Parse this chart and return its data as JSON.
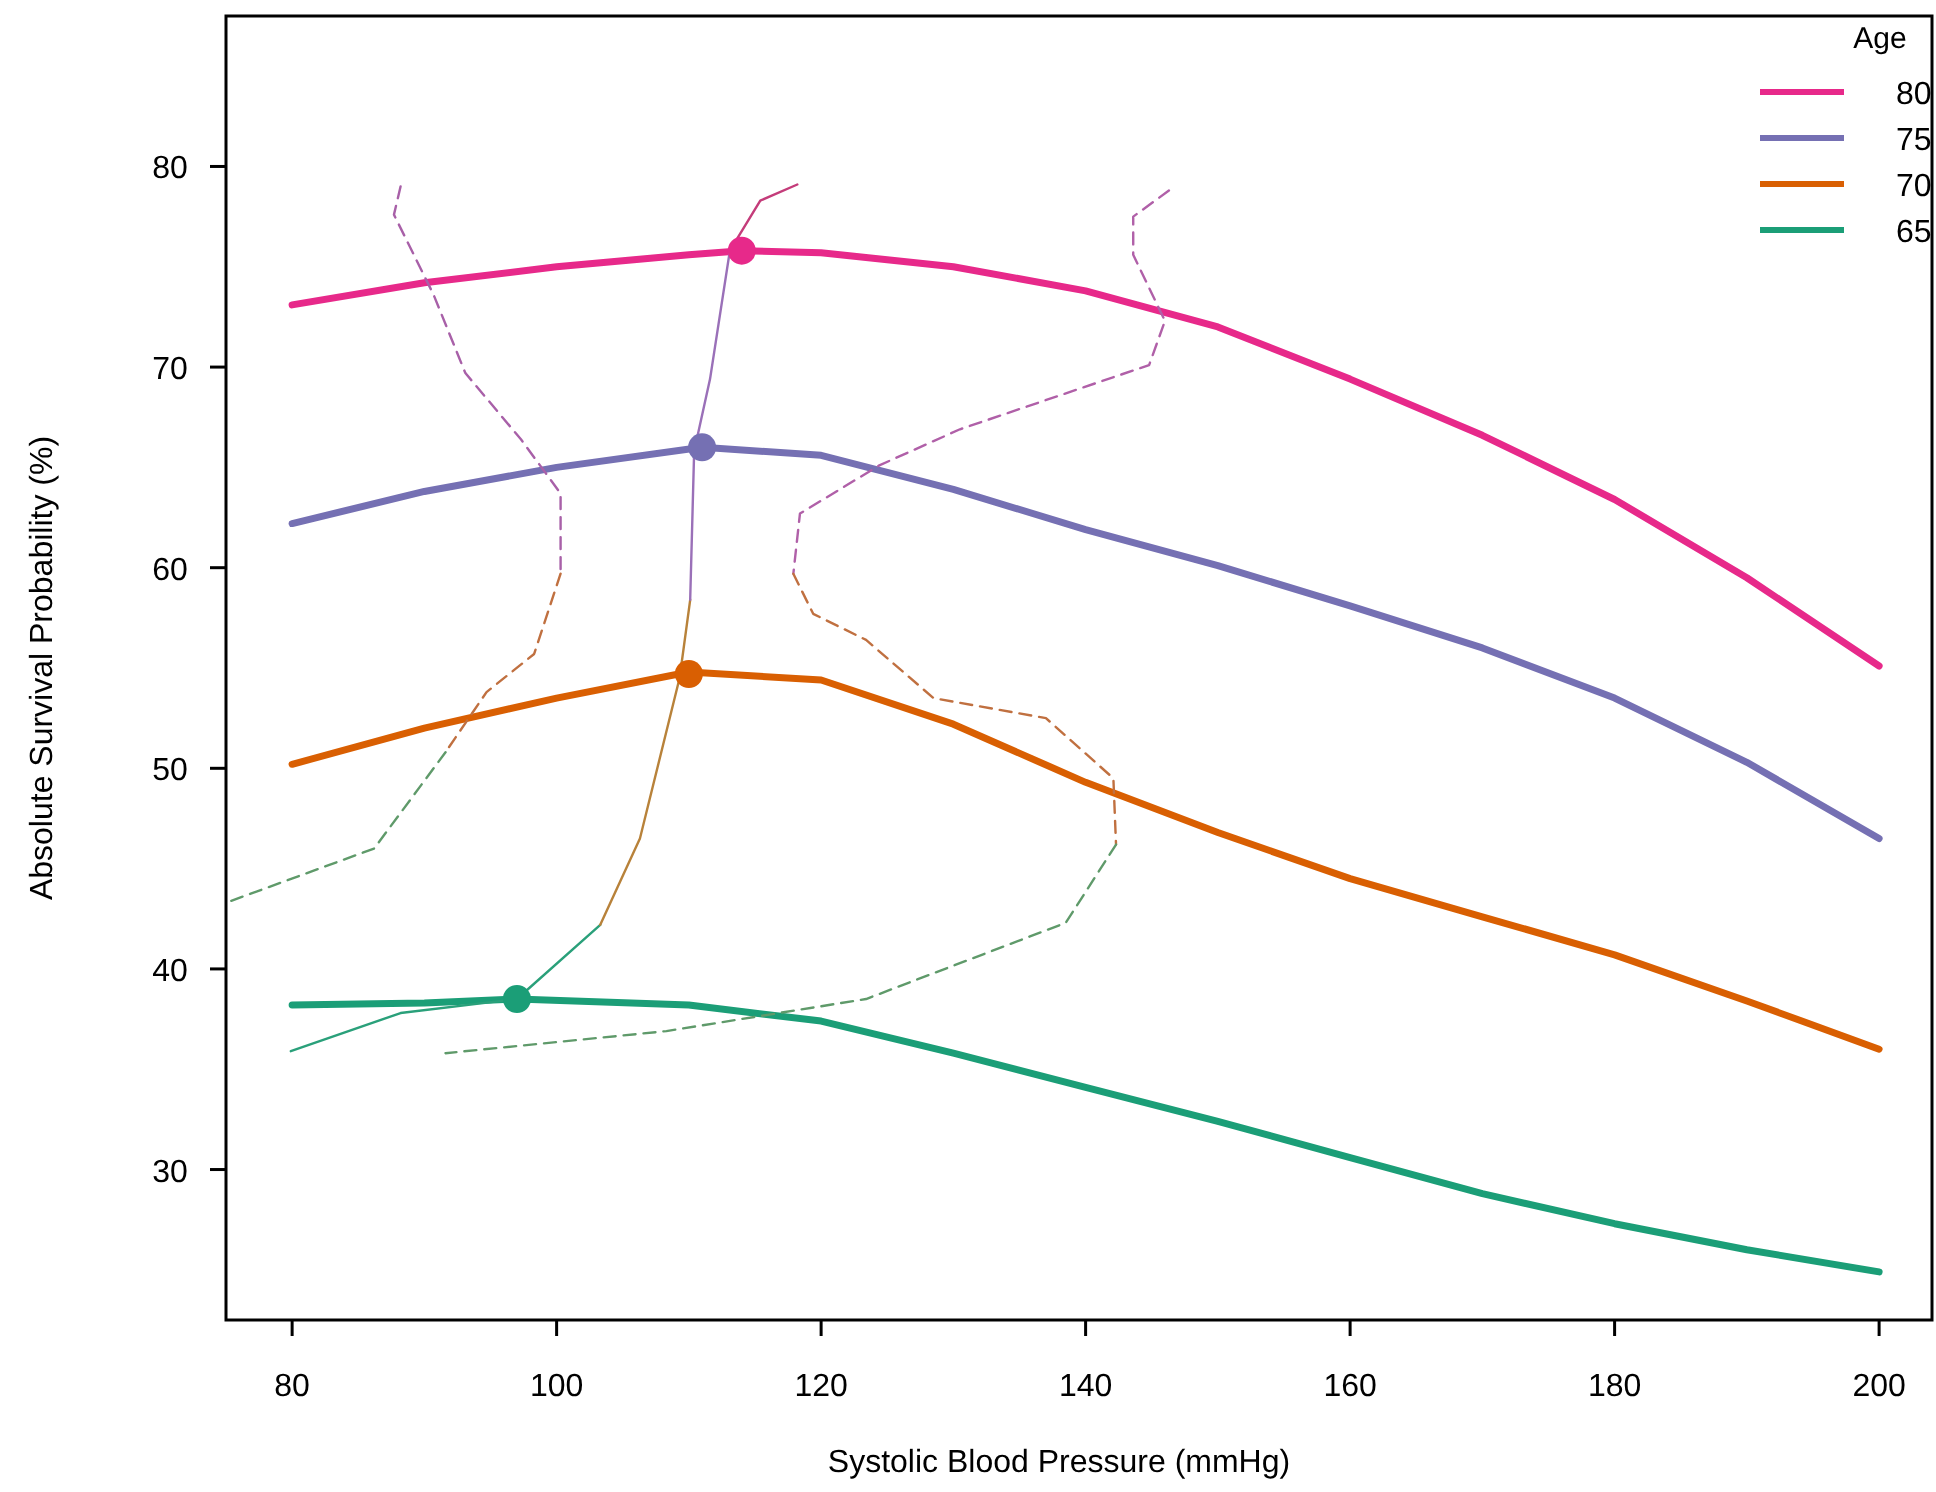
{
  "chart_data": {
    "type": "line",
    "xlabel": "Systolic Blood Pressure (mmHg)",
    "ylabel": "Absolute Survival Probability (%)",
    "legend_title": "Age",
    "legend": "top right",
    "grid": false,
    "xlim": [
      75,
      204
    ],
    "ylim": [
      22.5,
      87.5
    ],
    "xticks": [
      80,
      100,
      120,
      140,
      160,
      180,
      200
    ],
    "yticks": [
      30,
      40,
      50,
      60,
      70,
      80
    ],
    "series": [
      {
        "name": "80",
        "color": "#e7298a",
        "x": [
          80,
          90,
          100,
          110,
          114,
          120,
          130,
          140,
          150,
          160,
          170,
          180,
          190,
          200
        ],
        "values": [
          73.1,
          74.2,
          75.0,
          75.6,
          75.8,
          75.7,
          75.0,
          73.8,
          72.0,
          69.4,
          66.6,
          63.4,
          59.5,
          55.1
        ]
      },
      {
        "name": "75",
        "color": "#7570b3",
        "x": [
          80,
          90,
          100,
          111,
          120,
          130,
          140,
          150,
          160,
          170,
          180,
          190,
          200
        ],
        "values": [
          62.2,
          63.8,
          65.0,
          66.0,
          65.6,
          63.9,
          61.9,
          60.1,
          58.1,
          56.0,
          53.5,
          50.3,
          46.5
        ]
      },
      {
        "name": "70",
        "color": "#d95f02",
        "x": [
          80,
          90,
          100,
          110,
          120,
          130,
          140,
          150,
          160,
          170,
          180,
          190,
          200
        ],
        "values": [
          50.2,
          52.0,
          53.5,
          54.8,
          54.4,
          52.2,
          49.3,
          46.8,
          44.5,
          42.6,
          40.7,
          38.4,
          36.0
        ]
      },
      {
        "name": "65",
        "color": "#1b9e77",
        "x": [
          80,
          90,
          97,
          110,
          120,
          130,
          140,
          150,
          160,
          170,
          180,
          190,
          200
        ],
        "values": [
          38.2,
          38.3,
          38.5,
          38.2,
          37.4,
          35.8,
          34.1,
          32.4,
          30.6,
          28.8,
          27.3,
          26.0,
          24.9
        ]
      },
      {
        "type": "scatter",
        "marker": "circle",
        "x": [
          114,
          111,
          110,
          97
        ],
        "values": [
          75.8,
          66.0,
          54.7,
          38.5
        ],
        "colors": [
          "#e7298a",
          "#7570b3",
          "#d95f02",
          "#1b9e77"
        ]
      },
      {
        "color": "#2aa07a",
        "x": [
          79.9,
          88.2,
          97,
          103.3
        ],
        "values": [
          35.9,
          37.8,
          38.5,
          42.2
        ]
      },
      {
        "color": "#b8823a",
        "x": [
          103.3,
          106.3,
          109.3,
          110.1
        ],
        "values": [
          42.2,
          46.5,
          54.5,
          58.4
        ]
      },
      {
        "color": "#9a70b8",
        "x": [
          110.1,
          110.4,
          111.6,
          113.1
        ],
        "values": [
          58.4,
          65.8,
          69.4,
          75.8
        ]
      },
      {
        "color": "#c43c7a",
        "x": [
          113.1,
          115.4,
          118.2
        ],
        "values": [
          75.8,
          78.3,
          79.1
        ]
      },
      {
        "color": "#a860a8",
        "line_style": "dashed",
        "x": [
          88.2,
          87.7,
          90.7,
          93.1,
          97.3,
          100.3,
          100.3
        ],
        "values": [
          79.0,
          77.6,
          73.6,
          69.7,
          66.4,
          63.7,
          59.7
        ]
      },
      {
        "color": "#c07040",
        "line_style": "dashed",
        "x": [
          100.3,
          98.3,
          94.7,
          91.6
        ],
        "values": [
          59.7,
          55.7,
          53.8,
          50.8
        ]
      },
      {
        "color": "#5f9a6a",
        "line_style": "dashed",
        "x": [
          91.6,
          86.2,
          75.0
        ],
        "values": [
          50.8,
          46.0,
          43.3
        ]
      },
      {
        "color": "#b060a8",
        "line_style": "dashed",
        "x": [
          146.3,
          143.6,
          143.6,
          146.0,
          144.8,
          130.5,
          124.4,
          118.4,
          117.9
        ],
        "values": [
          78.8,
          77.5,
          75.6,
          72.3,
          70.1,
          66.9,
          65.1,
          62.7,
          59.7
        ]
      },
      {
        "color": "#c07040",
        "line_style": "dashed",
        "x": [
          117.9,
          119.4,
          123.4,
          128.5,
          137.0,
          142.1,
          142.3
        ],
        "values": [
          59.7,
          57.7,
          56.4,
          53.5,
          52.5,
          49.5,
          46.2
        ]
      },
      {
        "color": "#5f9a6a",
        "line_style": "dashed",
        "x": [
          142.3,
          138.5,
          123.4,
          108.3,
          91.6
        ],
        "values": [
          46.2,
          42.3,
          38.5,
          36.9,
          35.8
        ]
      }
    ]
  }
}
